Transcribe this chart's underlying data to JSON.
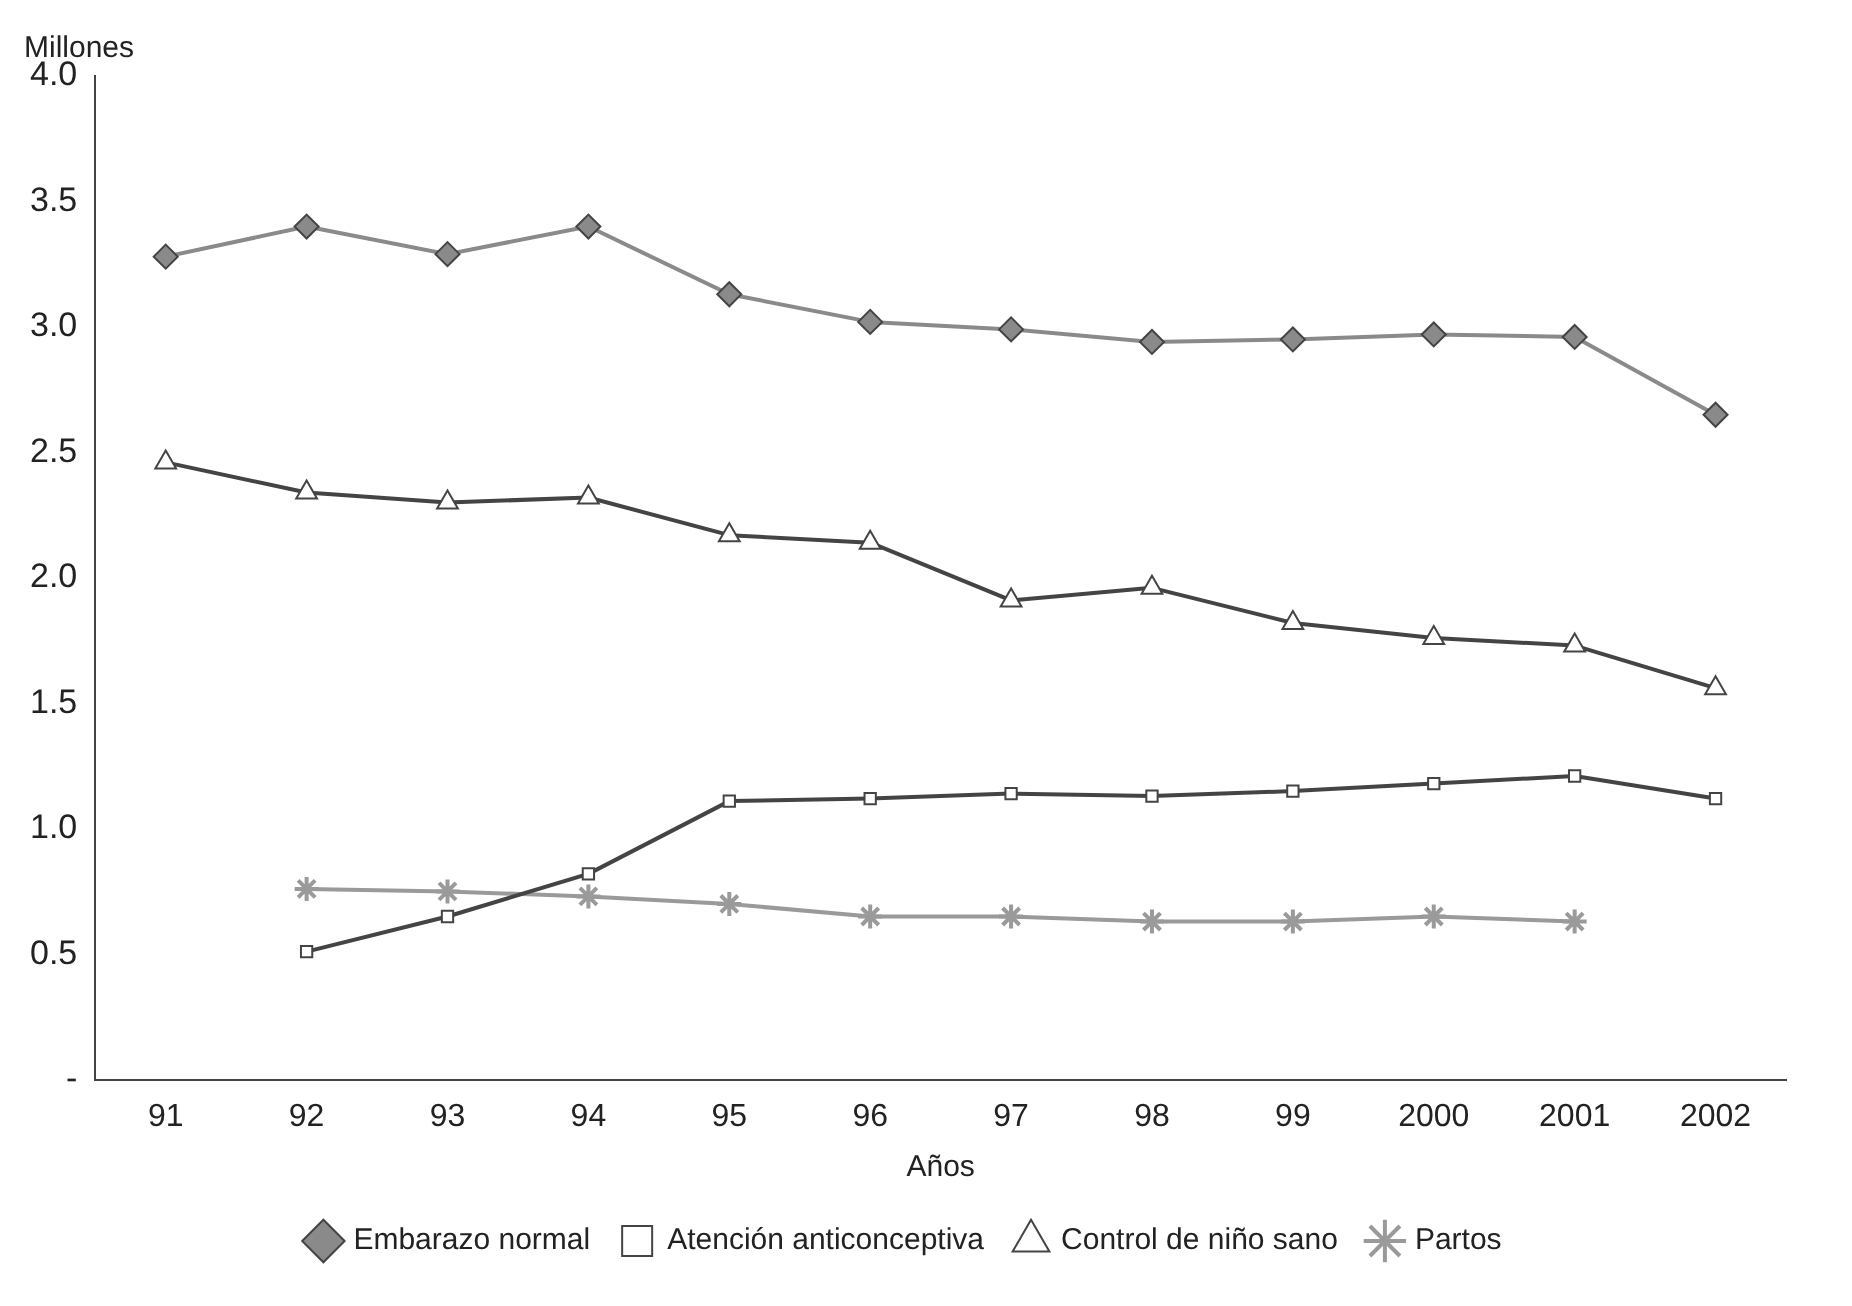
{
  "chart_data": {
    "type": "line",
    "xlabel": "Años",
    "ylabel": "Millones",
    "categories": [
      "91",
      "92",
      "93",
      "94",
      "95",
      "96",
      "97",
      "98",
      "99",
      "2000",
      "2001",
      "2002"
    ],
    "series": [
      {
        "name": "Embarazo normal",
        "color": "#8a8a8a",
        "marker": "diamond",
        "values": [
          3.28,
          3.4,
          3.29,
          3.4,
          3.13,
          3.02,
          2.99,
          2.94,
          2.95,
          2.97,
          2.96,
          2.65
        ]
      },
      {
        "name": "Atención anticonceptiva",
        "color": "#444444",
        "marker": "square",
        "values": [
          null,
          0.51,
          0.65,
          0.82,
          1.11,
          1.12,
          1.14,
          1.13,
          1.15,
          1.18,
          1.21,
          1.12
        ]
      },
      {
        "name": "Control de niño sano",
        "color": "#444444",
        "marker": "triangle",
        "values": [
          2.46,
          2.34,
          2.3,
          2.32,
          2.17,
          2.14,
          1.91,
          1.96,
          1.82,
          1.76,
          1.73,
          1.56
        ]
      },
      {
        "name": "Partos",
        "color": "#9a9a9a",
        "marker": "cross",
        "values": [
          null,
          0.76,
          0.75,
          0.73,
          0.7,
          0.65,
          0.65,
          0.63,
          0.63,
          0.65,
          0.63,
          null
        ]
      }
    ],
    "ylim": [
      0,
      4
    ],
    "yticks": [
      {
        "value": 0,
        "label": "-"
      },
      0.5,
      {
        "value": 1,
        "label": "1.0"
      },
      1.5,
      {
        "value": 2,
        "label": "2.0"
      },
      2.5,
      {
        "value": 3,
        "label": "3.0"
      },
      3.5,
      {
        "value": 4,
        "label": "4.0"
      }
    ],
    "grid": false,
    "legend": "bottom",
    "line_style": "solid"
  }
}
